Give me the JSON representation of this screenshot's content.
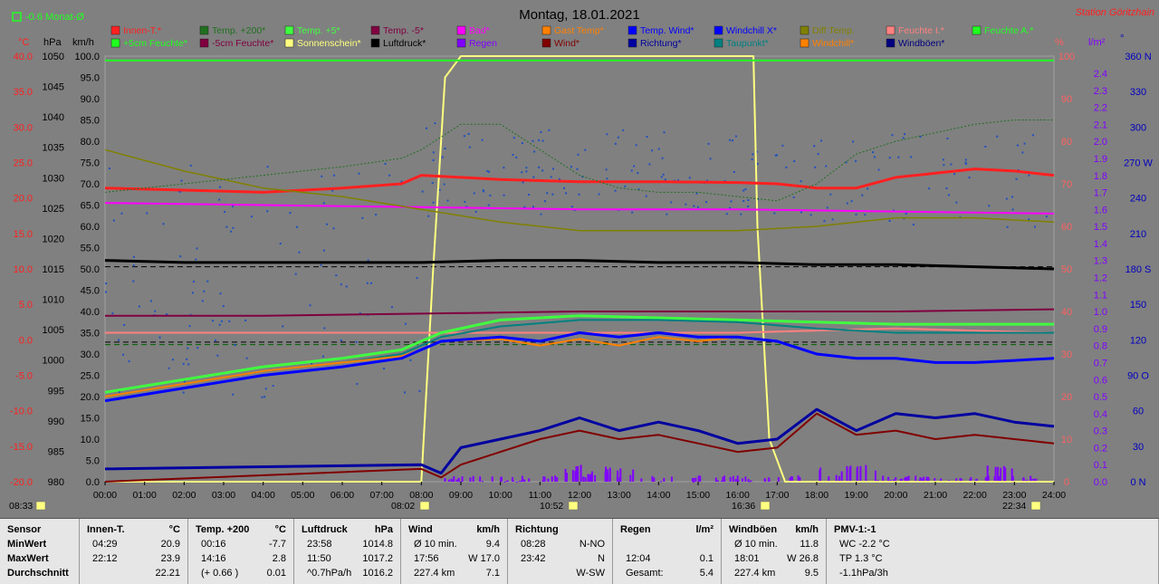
{
  "header": {
    "title": "Montag, 18.01.2021",
    "station": "Station Göritzhain",
    "monthly_avg": "-0.6 Monat-Ø"
  },
  "axis_units": {
    "temp": "°C",
    "pressure": "hPa",
    "speed": "km/h",
    "percent": "%",
    "rain": "l/m²"
  },
  "legend": [
    {
      "label": "Innen-T.*",
      "color": "#ff2020"
    },
    {
      "label": "Temp. +200*",
      "color": "#207020"
    },
    {
      "label": "Temp. +5*",
      "color": "#40ff40"
    },
    {
      "label": "Temp. -5*",
      "color": "#800040"
    },
    {
      "label": "Bad*",
      "color": "#ff00ff"
    },
    {
      "label": "Gast Temp*",
      "color": "#ff8000"
    },
    {
      "label": "Temp. Wind*",
      "color": "#0000ff"
    },
    {
      "label": "Windchill X*",
      "color": "#0000ff"
    },
    {
      "label": "Diff Temp.",
      "color": "#808000"
    },
    {
      "label": "Feuchte I.*",
      "color": "#ff8080"
    },
    {
      "label": "Feuchte A.*",
      "color": "#20ff20"
    },
    {
      "label": "+5cm Feuchte*",
      "color": "#20ff20"
    },
    {
      "label": "-5cm Feuchte*",
      "color": "#800040"
    },
    {
      "label": "Sonnenschein*",
      "color": "#ffff80"
    },
    {
      "label": "Luftdruck*",
      "color": "#000000"
    },
    {
      "label": "Regen",
      "color": "#8000ff"
    },
    {
      "label": "Wind*",
      "color": "#800000"
    },
    {
      "label": "Richtung*",
      "color": "#0000a0"
    },
    {
      "label": "Taupunkt*",
      "color": "#008080"
    },
    {
      "label": "Windchill*",
      "color": "#ff8000"
    },
    {
      "label": "Windböen*",
      "color": "#000080"
    }
  ],
  "events": [
    {
      "time": "08:33",
      "icon": "sunrise-icon"
    },
    {
      "time": "08:02",
      "icon": "sun-icon"
    },
    {
      "time": "10:52",
      "icon": "rain-marker-icon"
    },
    {
      "time": "16:36",
      "icon": "sunset-icon"
    },
    {
      "time": "22:34",
      "icon": "rain-marker-icon"
    }
  ],
  "chart_data": {
    "type": "line",
    "x_ticks": [
      "00:00",
      "01:00",
      "02:00",
      "03:00",
      "04:00",
      "05:00",
      "06:00",
      "07:00",
      "08:00",
      "09:00",
      "10:00",
      "11:00",
      "12:00",
      "13:00",
      "14:00",
      "15:00",
      "16:00",
      "17:00",
      "18:00",
      "19:00",
      "20:00",
      "21:00",
      "22:00",
      "23:00",
      "24:00"
    ],
    "axes": {
      "temp_ticks": [
        "40.0",
        "35.0",
        "30.0",
        "25.0",
        "20.0",
        "15.0",
        "10.0",
        "5.0",
        "0.0",
        "-5.0",
        "-10.0",
        "-15.0",
        "-20.0"
      ],
      "pressure_ticks": [
        "1050",
        "1045",
        "1040",
        "1035",
        "1030",
        "1025",
        "1020",
        "1015",
        "1010",
        "1005",
        "1000",
        "995",
        "990",
        "985",
        "980"
      ],
      "speed_ticks": [
        "100.0",
        "95.0",
        "90.0",
        "85.0",
        "80.0",
        "75.0",
        "70.0",
        "65.0",
        "60.0",
        "55.0",
        "50.0",
        "45.0",
        "40.0",
        "35.0",
        "30.0",
        "25.0",
        "20.0",
        "15.0",
        "10.0",
        "5.0",
        "0.0"
      ],
      "percent_ticks": [
        "100",
        "90",
        "80",
        "70",
        "60",
        "50",
        "40",
        "30",
        "20",
        "10",
        "0"
      ],
      "rain_ticks": [
        "2.4",
        "2.3",
        "2.2",
        "2.1",
        "2.0",
        "1.9",
        "1.8",
        "1.7",
        "1.6",
        "1.5",
        "1.4",
        "1.3",
        "1.2",
        "1.1",
        "1.0",
        "0.9",
        "0.8",
        "0.7",
        "0.6",
        "0.5",
        "0.4",
        "0.3",
        "0.2",
        "0.1",
        "0.0"
      ],
      "direction_ticks": [
        "360 N",
        "330",
        "300",
        "270 W",
        "240",
        "210",
        "180 S",
        "150",
        "120",
        "90 O",
        "60",
        "30",
        "0 N"
      ],
      "speed_range": [
        0,
        100
      ]
    },
    "series": [
      {
        "name": "Sonnenschein*",
        "color": "#ffff80",
        "width": 2,
        "x": [
          0,
          8.0,
          8.3,
          8.6,
          9.0,
          16.4,
          16.5,
          16.8,
          17.2,
          24
        ],
        "y": [
          0,
          0,
          50,
          95,
          100,
          100,
          60,
          10,
          0,
          0
        ]
      },
      {
        "name": "Feuchte A.*",
        "color": "#20ff20",
        "width": 2,
        "x": [
          0,
          24
        ],
        "y": [
          99,
          99
        ]
      },
      {
        "name": "Innen-T.*",
        "color": "#ff2020",
        "width": 3,
        "x": [
          0,
          2,
          4,
          6,
          7.5,
          8,
          9,
          10,
          12,
          14,
          16,
          17,
          18,
          19,
          20,
          21,
          22,
          23,
          24
        ],
        "y": [
          69,
          68.5,
          68,
          69,
          70,
          72,
          71.5,
          71,
          70.5,
          70.5,
          70.3,
          70,
          69,
          69,
          71.5,
          72.5,
          73.5,
          73,
          72
        ]
      },
      {
        "name": "Bad*",
        "color": "#ff00ff",
        "width": 2,
        "x": [
          0,
          4,
          8,
          12,
          16,
          20,
          24
        ],
        "y": [
          65.5,
          65,
          64.5,
          64,
          64,
          63.5,
          63
        ]
      },
      {
        "name": "Luftdruck*",
        "color": "#000000",
        "width": 3,
        "x": [
          0,
          2,
          4,
          6,
          8,
          10,
          12,
          14,
          16,
          18,
          20,
          22,
          24
        ],
        "y": [
          52,
          51.5,
          51.5,
          51.5,
          51.5,
          52,
          52,
          51.5,
          51.5,
          51,
          51,
          50.5,
          50
        ]
      },
      {
        "name": "-5cm Feuchte*",
        "color": "#800040",
        "width": 2,
        "x": [
          0,
          4,
          8,
          12,
          16,
          20,
          24
        ],
        "y": [
          39,
          39,
          39.5,
          40,
          40,
          40,
          40.5
        ]
      },
      {
        "name": "Feuchte I.*",
        "color": "#ff8080",
        "width": 2,
        "x": [
          0,
          6,
          8,
          12,
          16,
          18,
          20,
          24
        ],
        "y": [
          35,
          35,
          35,
          35,
          35,
          35.5,
          36,
          35
        ]
      },
      {
        "name": "Temp. +5*",
        "color": "#40ff40",
        "width": 3,
        "x": [
          0,
          2,
          4,
          6,
          7.5,
          8,
          8.5,
          10,
          12,
          14,
          16,
          18,
          20,
          22,
          24
        ],
        "y": [
          21,
          24,
          27,
          29,
          31,
          33,
          35,
          38,
          39,
          38.5,
          38,
          37.5,
          37,
          37,
          37
        ]
      },
      {
        "name": "Taupunkt*",
        "color": "#008080",
        "width": 2,
        "x": [
          0,
          2,
          4,
          6,
          7.5,
          8,
          8.5,
          10,
          12,
          14,
          16,
          18,
          20,
          22,
          24
        ],
        "y": [
          20,
          23,
          26,
          28,
          30,
          32,
          34,
          36.5,
          38,
          38,
          37.5,
          36,
          35,
          35,
          35
        ]
      },
      {
        "name": "Gast Temp*",
        "color": "#ff8000",
        "width": 2,
        "x": [
          0,
          2,
          4,
          6,
          7.5,
          8,
          8.5,
          10,
          11,
          12,
          13,
          14,
          15,
          16,
          17
        ],
        "y": [
          20,
          23,
          26,
          28,
          29.5,
          31,
          33,
          33.5,
          32,
          33.5,
          32,
          34,
          33,
          34,
          33
        ]
      },
      {
        "name": "Temp. Wind*",
        "color": "#0000ff",
        "width": 3,
        "x": [
          0,
          2,
          4,
          6,
          7.5,
          8,
          8.5,
          10,
          11,
          12,
          13,
          14,
          15,
          16,
          17,
          18,
          19,
          20,
          21,
          22,
          23,
          24
        ],
        "y": [
          19,
          22,
          25,
          27,
          29,
          31,
          33,
          34,
          33,
          35,
          34,
          35,
          34,
          34,
          33,
          30,
          29,
          29,
          28,
          28,
          28.5,
          29
        ]
      },
      {
        "name": "Diff Temp.",
        "color": "#808000",
        "width": 1.5,
        "x": [
          0,
          2,
          4,
          6,
          8,
          10,
          12,
          14,
          16,
          18,
          20,
          22,
          24
        ],
        "y": [
          78,
          73,
          69,
          67,
          64,
          61,
          59,
          59,
          59,
          60,
          62,
          62,
          61
        ]
      },
      {
        "name": "Temp. +200*",
        "color": "#207020",
        "width": 1,
        "dashed": true,
        "x": [
          0,
          2,
          4,
          6,
          7.5,
          8,
          9,
          10,
          11,
          12,
          13,
          14,
          15,
          16,
          17,
          18,
          19,
          20,
          21,
          22,
          23,
          24
        ],
        "y": [
          68,
          70,
          72,
          74,
          76,
          78,
          84,
          84,
          78,
          72,
          69,
          68,
          68,
          67,
          66,
          70,
          77,
          80,
          82,
          84,
          85,
          85
        ]
      },
      {
        "name": "Richtung*",
        "color": "#0000a0",
        "width": 3,
        "x": [
          0,
          8,
          8.5,
          9,
          10,
          11,
          12,
          13,
          14,
          15,
          16,
          17,
          18,
          19,
          20,
          21,
          22,
          23,
          24
        ],
        "y": [
          3,
          4,
          2,
          8,
          10,
          12,
          15,
          12,
          14,
          12,
          9,
          10,
          17,
          12,
          16,
          15,
          16,
          14,
          13
        ]
      },
      {
        "name": "Wind*",
        "color": "#800000",
        "width": 2,
        "x": [
          0,
          8,
          8.5,
          9,
          10,
          11,
          12,
          13,
          14,
          15,
          16,
          17,
          18,
          19,
          20,
          21,
          22,
          23,
          24
        ],
        "y": [
          0,
          3,
          1,
          4,
          7,
          10,
          12,
          10,
          11,
          9,
          7,
          8,
          16,
          11,
          12,
          10,
          11,
          10,
          9
        ]
      }
    ]
  },
  "table": {
    "columns": [
      {
        "header": "Sensor",
        "unit": "",
        "rows": [
          [
            "MinWert",
            "",
            ""
          ],
          [
            "MaxWert",
            "",
            ""
          ],
          [
            "Durchschnitt",
            "",
            ""
          ]
        ]
      },
      {
        "header": "Innen-T.",
        "unit": "°C",
        "rows": [
          [
            "04:29",
            "20.9"
          ],
          [
            "22:12",
            "23.9"
          ],
          [
            "",
            "22.21"
          ]
        ]
      },
      {
        "header": "Temp. +200",
        "unit": "°C",
        "rows": [
          [
            "00:16",
            "-7.7"
          ],
          [
            "14:16",
            "2.8"
          ],
          [
            "(+ 0.66 )",
            "0.01"
          ]
        ]
      },
      {
        "header": "Luftdruck",
        "unit": "hPa",
        "rows": [
          [
            "23:58",
            "1014.8"
          ],
          [
            "11:50",
            "1017.2"
          ],
          [
            "^0.7hPa/h",
            "1016.2"
          ]
        ]
      },
      {
        "header": "Wind",
        "unit": "km/h",
        "rows": [
          [
            "Ø 10 min.",
            "9.4"
          ],
          [
            "17:56",
            "W 17.0"
          ],
          [
            "227.4 km",
            "7.1"
          ]
        ]
      },
      {
        "header": "Richtung",
        "unit": "",
        "rows": [
          [
            "08:28",
            "N-NO"
          ],
          [
            "23:42",
            "N"
          ],
          [
            "",
            "W-SW"
          ]
        ]
      },
      {
        "header": "Regen",
        "unit": "l/m²",
        "rows": [
          [
            "",
            ""
          ],
          [
            "12:04",
            "0.1"
          ],
          [
            "Gesamt:",
            "5.4"
          ]
        ]
      },
      {
        "header": "Windböen",
        "unit": "km/h",
        "rows": [
          [
            "Ø 10 min.",
            "11.8"
          ],
          [
            "18:01",
            "W 26.8"
          ],
          [
            "227.4 km",
            "9.5"
          ]
        ]
      },
      {
        "header": "PMV-1:-1",
        "unit": "",
        "rows": [
          [
            "WC -2.2 °C",
            ""
          ],
          [
            "TP 1.3 °C",
            ""
          ],
          [
            "-1.1hPa/3h",
            ""
          ]
        ]
      }
    ]
  }
}
